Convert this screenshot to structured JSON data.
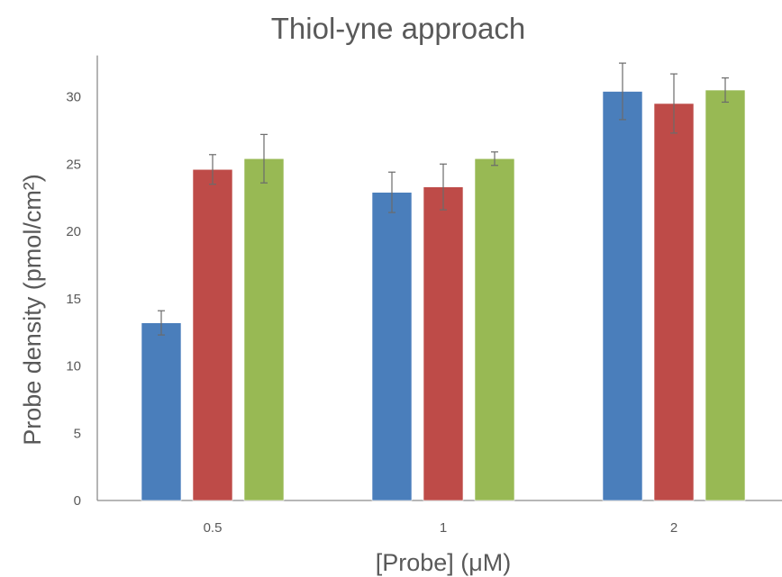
{
  "chart_data": {
    "type": "bar",
    "title": "Thiol-yne approach",
    "xlabel": "[Probe] (μM)",
    "ylabel": "Probe density (pmol/cm²)",
    "categories": [
      "0.5",
      "1",
      "2"
    ],
    "yticks": [
      "0",
      "5",
      "10",
      "15",
      "20",
      "25",
      "30"
    ],
    "ylim": [
      0,
      33
    ],
    "grid": false,
    "legend": "none",
    "series": [
      {
        "color": "#4a7ebb",
        "values": [
          13.2,
          22.9,
          30.4
        ],
        "errors": [
          0.9,
          1.5,
          2.1
        ]
      },
      {
        "color": "#be4b48",
        "values": [
          24.6,
          23.3,
          29.5
        ],
        "errors": [
          1.1,
          1.7,
          2.2
        ]
      },
      {
        "color": "#98b954",
        "values": [
          25.4,
          25.4,
          30.5
        ],
        "errors": [
          1.8,
          0.5,
          0.9
        ]
      }
    ]
  }
}
